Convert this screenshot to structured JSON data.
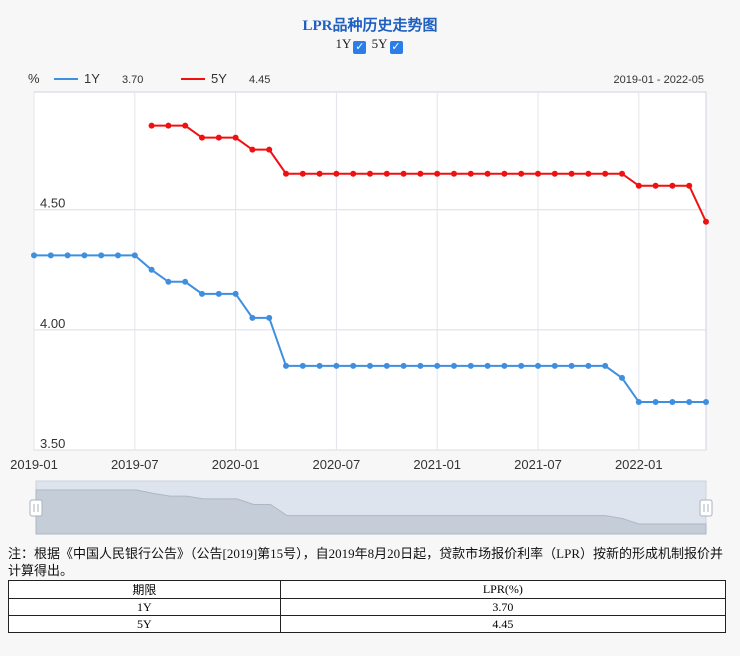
{
  "title": "LPR品种历史走势图",
  "toggles": [
    {
      "label": "1Y",
      "checked": true
    },
    {
      "label": "5Y",
      "checked": true
    }
  ],
  "chart_data": {
    "type": "line",
    "y_unit": "%",
    "date_range": "2019-01 - 2022-05",
    "x": [
      "2019-01",
      "2019-02",
      "2019-03",
      "2019-04",
      "2019-05",
      "2019-06",
      "2019-07",
      "2019-08",
      "2019-09",
      "2019-10",
      "2019-11",
      "2019-12",
      "2020-01",
      "2020-02",
      "2020-03",
      "2020-04",
      "2020-05",
      "2020-06",
      "2020-07",
      "2020-08",
      "2020-09",
      "2020-10",
      "2020-11",
      "2020-12",
      "2021-01",
      "2021-02",
      "2021-03",
      "2021-04",
      "2021-05",
      "2021-06",
      "2021-07",
      "2021-08",
      "2021-09",
      "2021-10",
      "2021-11",
      "2021-12",
      "2022-01",
      "2022-02",
      "2022-03",
      "2022-04",
      "2022-05"
    ],
    "x_ticks": [
      "2019-01",
      "2019-07",
      "2020-01",
      "2020-07",
      "2021-01",
      "2021-07",
      "2022-01"
    ],
    "y_ticks": [
      "3.50",
      "4.00",
      "4.50"
    ],
    "ylim": [
      3.5,
      4.99
    ],
    "series": [
      {
        "name": "1Y",
        "latest": "3.70",
        "color": "#3f8fe0",
        "values": [
          4.31,
          4.31,
          4.31,
          4.31,
          4.31,
          4.31,
          4.31,
          4.25,
          4.2,
          4.2,
          4.15,
          4.15,
          4.15,
          4.05,
          4.05,
          3.85,
          3.85,
          3.85,
          3.85,
          3.85,
          3.85,
          3.85,
          3.85,
          3.85,
          3.85,
          3.85,
          3.85,
          3.85,
          3.85,
          3.85,
          3.85,
          3.85,
          3.85,
          3.85,
          3.85,
          3.8,
          3.7,
          3.7,
          3.7,
          3.7,
          3.7
        ]
      },
      {
        "name": "5Y",
        "latest": "4.45",
        "color": "#f01010",
        "values": [
          null,
          null,
          null,
          null,
          null,
          null,
          null,
          4.85,
          4.85,
          4.85,
          4.8,
          4.8,
          4.8,
          4.75,
          4.75,
          4.65,
          4.65,
          4.65,
          4.65,
          4.65,
          4.65,
          4.65,
          4.65,
          4.65,
          4.65,
          4.65,
          4.65,
          4.65,
          4.65,
          4.65,
          4.65,
          4.65,
          4.65,
          4.65,
          4.65,
          4.65,
          4.6,
          4.6,
          4.6,
          4.6,
          4.45
        ]
      }
    ],
    "grid": true,
    "legend": "top-left"
  },
  "note": "注：根据《中国人民银行公告》（公告[2019]第15号），自2019年8月20日起，贷款市场报价利率（LPR）按新的形成机制报价并计算得出。",
  "table": {
    "headers": [
      "期限",
      "LPR(%)"
    ],
    "rows": [
      [
        "1Y",
        "3.70"
      ],
      [
        "5Y",
        "4.45"
      ]
    ]
  }
}
